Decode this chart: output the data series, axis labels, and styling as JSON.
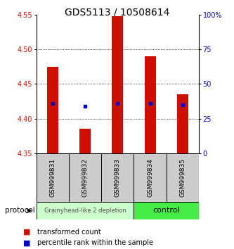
{
  "title": "GDS5113 / 10508614",
  "samples": [
    "GSM999831",
    "GSM999832",
    "GSM999833",
    "GSM999834",
    "GSM999835"
  ],
  "bar_bottoms": [
    4.35,
    4.35,
    4.35,
    4.35,
    4.35
  ],
  "bar_tops": [
    4.475,
    4.385,
    4.548,
    4.49,
    4.435
  ],
  "percentile_values": [
    4.422,
    4.418,
    4.422,
    4.422,
    4.42
  ],
  "ylim": [
    4.35,
    4.55
  ],
  "y_ticks": [
    4.35,
    4.4,
    4.45,
    4.5,
    4.55
  ],
  "right_ticks": [
    0,
    25,
    50,
    75,
    100
  ],
  "right_tick_labels": [
    "0",
    "25",
    "50",
    "75",
    "100%"
  ],
  "bar_color": "#cc1100",
  "percentile_color": "#0000cc",
  "group1_label": "Grainyhead-like 2 depletion",
  "group2_label": "control",
  "group1_bg": "#ccffcc",
  "group2_bg": "#44ee44",
  "protocol_label": "protocol",
  "legend_red_label": "transformed count",
  "legend_blue_label": "percentile rank within the sample",
  "bar_color_red": "#cc1100",
  "bar_color_blue": "#0000cc",
  "title_fontsize": 10,
  "tick_fontsize": 7,
  "bar_width": 0.35
}
